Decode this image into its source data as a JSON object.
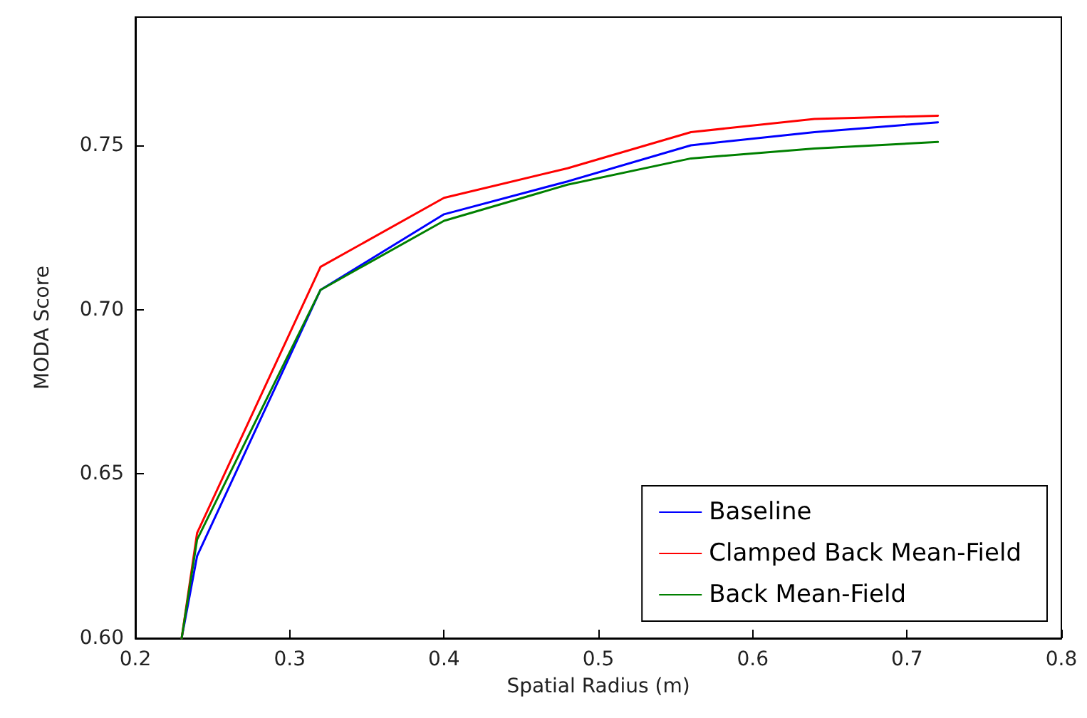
{
  "chart_data": {
    "type": "line",
    "xlabel": "Spatial Radius (m)",
    "ylabel": "MODA Score",
    "x": [
      0.23,
      0.24,
      0.32,
      0.4,
      0.48,
      0.56,
      0.64,
      0.72
    ],
    "series": [
      {
        "name": "Baseline",
        "color": "#0000ff",
        "values": [
          0.6,
          0.625,
          0.706,
          0.729,
          0.739,
          0.75,
          0.754,
          0.757
        ]
      },
      {
        "name": "Clamped Back Mean-Field",
        "color": "#ff0000",
        "values": [
          0.6,
          0.632,
          0.713,
          0.734,
          0.743,
          0.754,
          0.758,
          0.759
        ]
      },
      {
        "name": "Back Mean-Field",
        "color": "#008000",
        "values": [
          0.6,
          0.63,
          0.706,
          0.727,
          0.738,
          0.746,
          0.749,
          0.751
        ]
      }
    ],
    "xlim": [
      0.2,
      0.8
    ],
    "xticks": [
      0.2,
      0.3,
      0.4,
      0.5,
      0.6,
      0.7,
      0.8
    ],
    "ylim": [
      0.6,
      0.789
    ],
    "yticks": [
      {
        "value": 0.6,
        "label": "0.60"
      },
      {
        "value": 0.65,
        "label": "0.65"
      },
      {
        "value": 0.7,
        "label": "0.70"
      },
      {
        "value": 0.75,
        "label": "0.75"
      }
    ],
    "grid": false,
    "legend": "bottom right",
    "marker": "none",
    "line_style": "solid"
  }
}
